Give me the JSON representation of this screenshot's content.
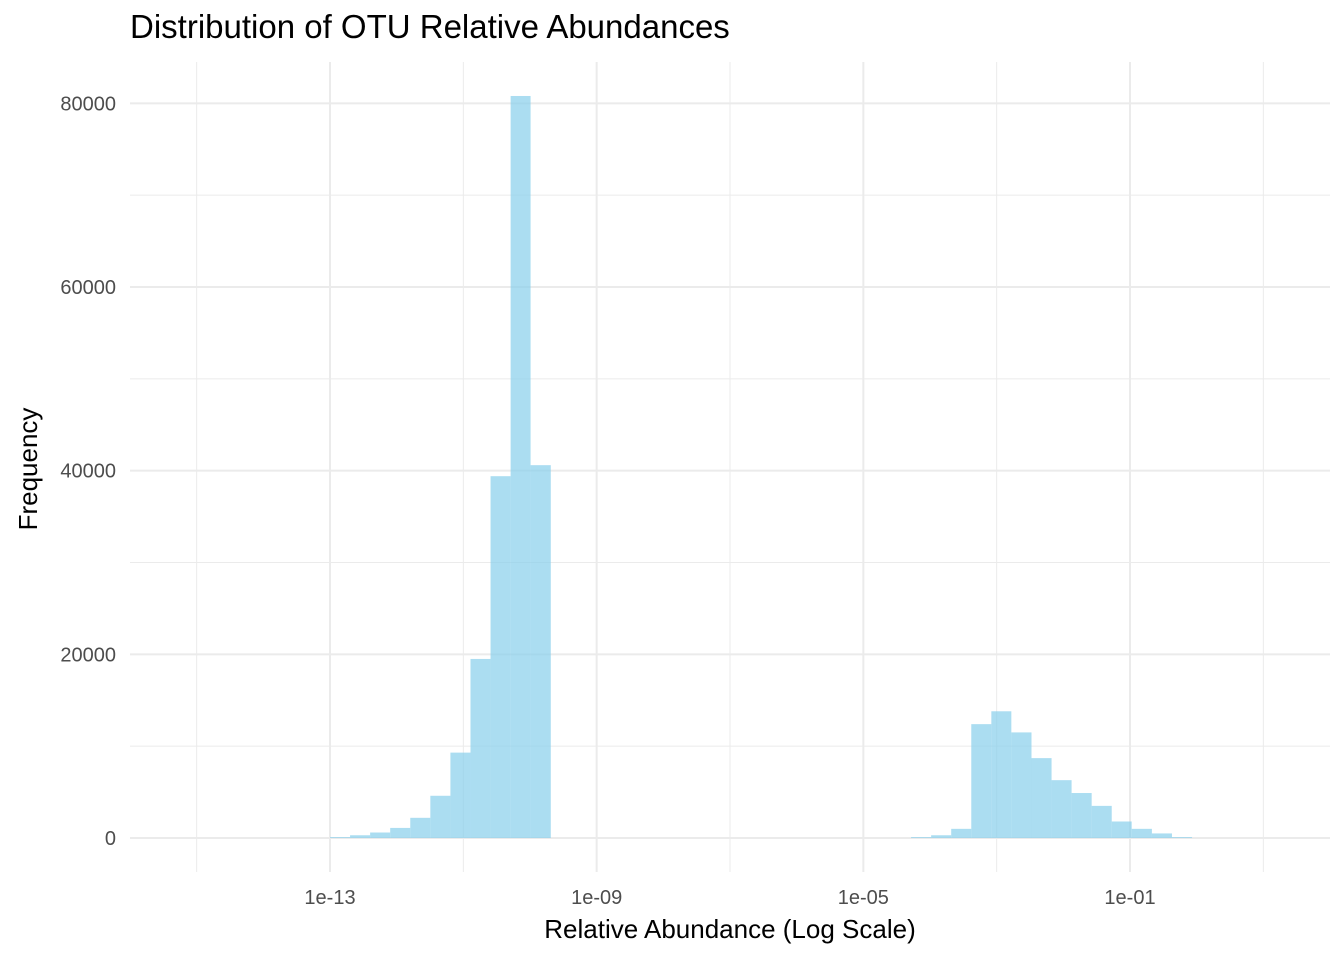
{
  "chart_data": {
    "type": "bar",
    "title": "Distribution of OTU Relative Abundances",
    "xlabel": "Relative Abundance (Log Scale)",
    "ylabel": "Frequency",
    "x_scale": "log10",
    "x_ticks": [
      1e-13,
      1e-09,
      1e-05,
      0.1
    ],
    "x_tick_labels": [
      "1e-13",
      "1e-09",
      "1e-05",
      "1e-01"
    ],
    "xlim": [
      1e-16,
      100
    ],
    "y_ticks": [
      0,
      20000,
      40000,
      60000,
      80000
    ],
    "y_tick_labels": [
      "0",
      "20000",
      "40000",
      "60000",
      "80000"
    ],
    "ylim": [
      -3700,
      84500
    ],
    "grid": true,
    "bar_color": "#87CEEB",
    "series": [
      {
        "bins": [
          {
            "x0": 1e-13,
            "x1": 2e-13,
            "count": 100
          },
          {
            "x0": 2e-13,
            "x1": 4e-13,
            "count": 300
          },
          {
            "x0": 4e-13,
            "x1": 8e-13,
            "count": 600
          },
          {
            "x0": 8e-13,
            "x1": 1.6e-12,
            "count": 1100
          },
          {
            "x0": 1.6e-12,
            "x1": 3.2e-12,
            "count": 2200
          },
          {
            "x0": 3.2e-12,
            "x1": 6.4e-12,
            "count": 4600
          },
          {
            "x0": 6.4e-12,
            "x1": 1.28e-11,
            "count": 9300
          },
          {
            "x0": 1.28e-11,
            "x1": 2.56e-11,
            "count": 19500
          },
          {
            "x0": 2.56e-11,
            "x1": 5.12e-11,
            "count": 39400
          },
          {
            "x0": 5.12e-11,
            "x1": 1.02e-10,
            "count": 80800
          },
          {
            "x0": 1.02e-10,
            "x1": 2.05e-10,
            "count": 40600
          },
          {
            "x0": 5.2e-05,
            "x1": 0.000104,
            "count": 100
          },
          {
            "x0": 0.000104,
            "x1": 0.000208,
            "count": 300
          },
          {
            "x0": 0.000208,
            "x1": 0.000416,
            "count": 1000
          },
          {
            "x0": 0.000416,
            "x1": 0.000832,
            "count": 12400
          },
          {
            "x0": 0.000832,
            "x1": 0.00166,
            "count": 13800
          },
          {
            "x0": 0.00166,
            "x1": 0.00333,
            "count": 11500
          },
          {
            "x0": 0.00333,
            "x1": 0.00666,
            "count": 8700
          },
          {
            "x0": 0.00666,
            "x1": 0.0133,
            "count": 6300
          },
          {
            "x0": 0.0133,
            "x1": 0.0266,
            "count": 4900
          },
          {
            "x0": 0.0266,
            "x1": 0.0532,
            "count": 3500
          },
          {
            "x0": 0.0532,
            "x1": 0.106,
            "count": 1800
          },
          {
            "x0": 0.106,
            "x1": 0.213,
            "count": 1000
          },
          {
            "x0": 0.213,
            "x1": 0.426,
            "count": 500
          },
          {
            "x0": 0.426,
            "x1": 0.852,
            "count": 100
          }
        ]
      }
    ]
  }
}
